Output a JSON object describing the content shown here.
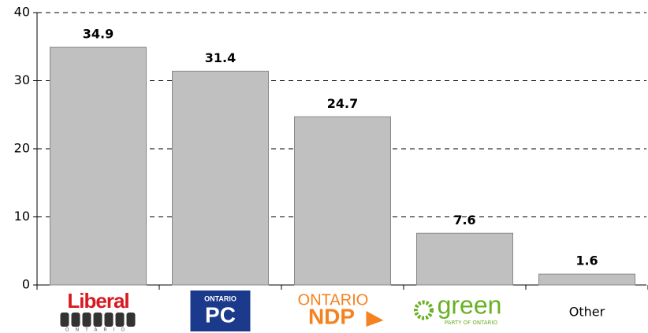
{
  "chart_data": {
    "type": "bar",
    "categories": [
      "Liberal",
      "PC",
      "NDP",
      "green",
      "Other"
    ],
    "category_subtitles": [
      "ONTARIO",
      "ONTARIO",
      "ONTARIO",
      "PARTY OF ONTARIO",
      null
    ],
    "values": [
      34.9,
      31.4,
      24.7,
      7.6,
      1.6
    ],
    "color": "#c0c0c0",
    "ylim": [
      0,
      40
    ],
    "yticks": [
      0,
      10,
      20,
      30,
      40
    ],
    "grid": true
  }
}
